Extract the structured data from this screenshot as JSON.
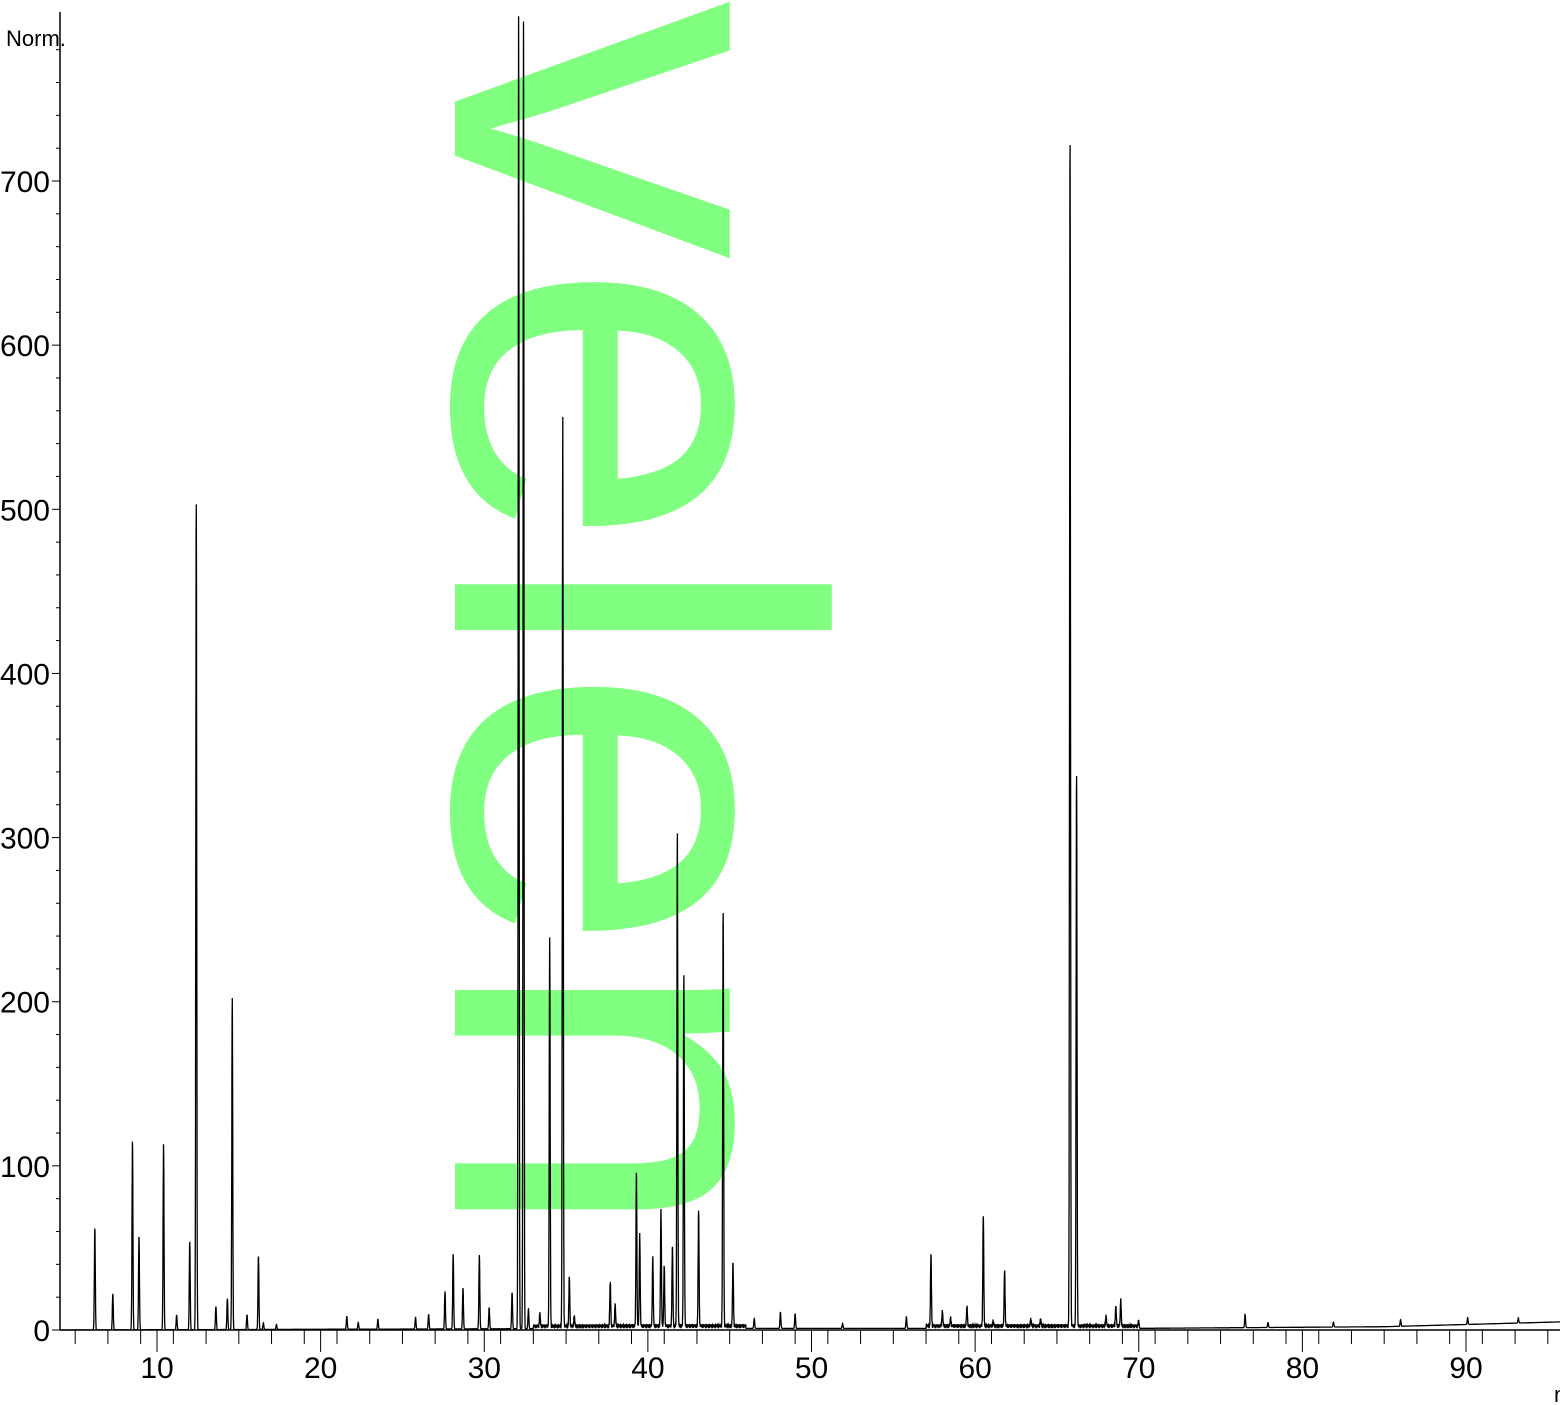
{
  "chart_data": {
    "type": "line",
    "title": "",
    "xlabel": "min",
    "ylabel": "Norm.",
    "xlim": [
      4,
      96
    ],
    "ylim": [
      0,
      800
    ],
    "x_ticks": [
      10,
      20,
      30,
      40,
      50,
      60,
      70,
      80,
      90
    ],
    "y_ticks": [
      0,
      100,
      200,
      300,
      400,
      500,
      600,
      700
    ],
    "grid": false,
    "legend": "none",
    "line_color": "#000000",
    "watermark": {
      "text": "velen",
      "color": "#80ff80"
    },
    "peaks": [
      {
        "x": 6.2,
        "y": 62
      },
      {
        "x": 7.3,
        "y": 22
      },
      {
        "x": 8.5,
        "y": 115
      },
      {
        "x": 8.9,
        "y": 57
      },
      {
        "x": 10.4,
        "y": 113
      },
      {
        "x": 11.2,
        "y": 9
      },
      {
        "x": 12.0,
        "y": 54
      },
      {
        "x": 12.4,
        "y": 505
      },
      {
        "x": 13.6,
        "y": 14
      },
      {
        "x": 14.3,
        "y": 19
      },
      {
        "x": 14.6,
        "y": 202
      },
      {
        "x": 15.5,
        "y": 9
      },
      {
        "x": 16.2,
        "y": 45
      },
      {
        "x": 16.5,
        "y": 4
      },
      {
        "x": 17.3,
        "y": 3
      },
      {
        "x": 21.6,
        "y": 8
      },
      {
        "x": 22.3,
        "y": 4
      },
      {
        "x": 23.5,
        "y": 6
      },
      {
        "x": 25.8,
        "y": 7
      },
      {
        "x": 26.6,
        "y": 9
      },
      {
        "x": 27.6,
        "y": 23
      },
      {
        "x": 28.1,
        "y": 46
      },
      {
        "x": 28.7,
        "y": 25
      },
      {
        "x": 29.7,
        "y": 45
      },
      {
        "x": 30.3,
        "y": 13
      },
      {
        "x": 31.7,
        "y": 22
      },
      {
        "x": 32.1,
        "y": 800
      },
      {
        "x": 32.4,
        "y": 800
      },
      {
        "x": 32.7,
        "y": 12
      },
      {
        "x": 33.4,
        "y": 8
      },
      {
        "x": 34.0,
        "y": 238
      },
      {
        "x": 34.8,
        "y": 553
      },
      {
        "x": 35.2,
        "y": 30
      },
      {
        "x": 35.5,
        "y": 6
      },
      {
        "x": 37.7,
        "y": 27
      },
      {
        "x": 38.0,
        "y": 13
      },
      {
        "x": 39.3,
        "y": 93
      },
      {
        "x": 39.5,
        "y": 56
      },
      {
        "x": 40.3,
        "y": 42
      },
      {
        "x": 40.8,
        "y": 71
      },
      {
        "x": 41.0,
        "y": 37
      },
      {
        "x": 41.5,
        "y": 48
      },
      {
        "x": 41.8,
        "y": 300
      },
      {
        "x": 42.2,
        "y": 215
      },
      {
        "x": 43.1,
        "y": 70
      },
      {
        "x": 44.6,
        "y": 253
      },
      {
        "x": 45.2,
        "y": 38
      },
      {
        "x": 46.5,
        "y": 6
      },
      {
        "x": 48.1,
        "y": 10
      },
      {
        "x": 49.0,
        "y": 9
      },
      {
        "x": 51.9,
        "y": 3
      },
      {
        "x": 55.8,
        "y": 7
      },
      {
        "x": 57.3,
        "y": 44
      },
      {
        "x": 58.0,
        "y": 9
      },
      {
        "x": 58.5,
        "y": 5
      },
      {
        "x": 59.5,
        "y": 12
      },
      {
        "x": 60.5,
        "y": 68
      },
      {
        "x": 61.1,
        "y": 3
      },
      {
        "x": 61.8,
        "y": 34
      },
      {
        "x": 63.4,
        "y": 4
      },
      {
        "x": 64.0,
        "y": 4
      },
      {
        "x": 65.8,
        "y": 725
      },
      {
        "x": 66.2,
        "y": 337
      },
      {
        "x": 68.0,
        "y": 6
      },
      {
        "x": 68.6,
        "y": 12
      },
      {
        "x": 68.9,
        "y": 16
      },
      {
        "x": 70.0,
        "y": 4
      },
      {
        "x": 76.5,
        "y": 8
      },
      {
        "x": 77.9,
        "y": 3
      },
      {
        "x": 81.9,
        "y": 3
      },
      {
        "x": 86.0,
        "y": 4
      },
      {
        "x": 90.1,
        "y": 4
      },
      {
        "x": 93.2,
        "y": 3
      }
    ],
    "baseline": [
      {
        "x": 4,
        "y": 0
      },
      {
        "x": 40,
        "y": 1
      },
      {
        "x": 70,
        "y": 1
      },
      {
        "x": 85,
        "y": 2
      },
      {
        "x": 96,
        "y": 5
      }
    ]
  }
}
